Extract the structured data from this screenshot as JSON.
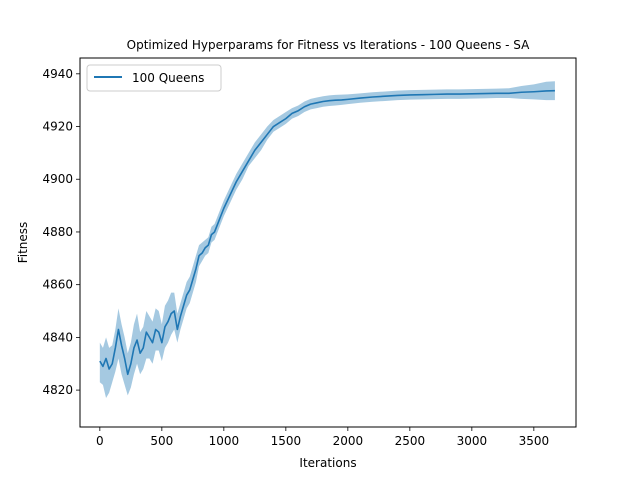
{
  "chart_data": {
    "type": "line",
    "title": "Optimized Hyperparams for Fitness vs Iterations - 100 Queens - SA",
    "xlabel": "Iterations",
    "ylabel": "Fitness",
    "xlim": [
      -160,
      3840
    ],
    "ylim": [
      4806,
      4946
    ],
    "xticks": [
      0,
      500,
      1000,
      1500,
      2000,
      2500,
      3000,
      3500
    ],
    "yticks": [
      4820,
      4840,
      4860,
      4880,
      4900,
      4920,
      4940
    ],
    "grid": false,
    "legend_position": "upper-left",
    "legend": [
      "100 Queens"
    ],
    "series": [
      {
        "name": "100 Queens",
        "color": "#1f77b4",
        "band_color": "#1f77b4",
        "x": [
          0,
          25,
          50,
          75,
          100,
          125,
          150,
          175,
          200,
          225,
          250,
          275,
          300,
          325,
          350,
          375,
          400,
          425,
          450,
          475,
          500,
          525,
          550,
          575,
          600,
          625,
          650,
          675,
          700,
          725,
          750,
          775,
          800,
          825,
          850,
          875,
          900,
          925,
          950,
          975,
          1000,
          1050,
          1100,
          1150,
          1200,
          1250,
          1300,
          1350,
          1400,
          1450,
          1500,
          1550,
          1600,
          1650,
          1700,
          1750,
          1800,
          1850,
          1900,
          1950,
          2000,
          2100,
          2200,
          2300,
          2400,
          2500,
          2600,
          2700,
          2800,
          2900,
          3000,
          3100,
          3200,
          3300,
          3400,
          3500,
          3600,
          3670
        ],
        "values": [
          4831,
          4829,
          4832,
          4828,
          4830,
          4836,
          4843,
          4837,
          4832,
          4826,
          4830,
          4836,
          4839,
          4834,
          4836,
          4842,
          4840,
          4838,
          4843,
          4842,
          4838,
          4844,
          4846,
          4849,
          4850,
          4843,
          4848,
          4852,
          4856,
          4858,
          4862,
          4866,
          4871,
          4872,
          4874,
          4875,
          4879,
          4880,
          4883,
          4886,
          4889,
          4894,
          4899,
          4903,
          4907,
          4911,
          4914,
          4917,
          4920,
          4921.5,
          4923,
          4925,
          4926,
          4927.5,
          4928.5,
          4929,
          4929.5,
          4929.8,
          4930,
          4930.1,
          4930.3,
          4930.8,
          4931.2,
          4931.5,
          4931.8,
          4932,
          4932.1,
          4932.2,
          4932.3,
          4932.3,
          4932.4,
          4932.5,
          4932.6,
          4932.6,
          4933,
          4933.2,
          4933.5,
          4933.6
        ],
        "lower": [
          4823,
          4822,
          4817,
          4819,
          4823,
          4827,
          4832,
          4826,
          4822,
          4818,
          4821,
          4826,
          4830,
          4826,
          4828,
          4832,
          4832,
          4830,
          4835,
          4835,
          4831,
          4836,
          4838,
          4841,
          4843,
          4838,
          4843,
          4847,
          4851,
          4853,
          4857,
          4861,
          4867,
          4869,
          4871,
          4872,
          4876,
          4877,
          4880,
          4883,
          4886,
          4891,
          4896,
          4900,
          4905,
          4908,
          4911,
          4915,
          4918,
          4919.5,
          4921,
          4923,
          4924,
          4925.5,
          4926.5,
          4927,
          4927.5,
          4927.8,
          4928,
          4928.2,
          4928.5,
          4929,
          4929.4,
          4929.7,
          4930,
          4930.2,
          4930.3,
          4930.4,
          4930.5,
          4930.5,
          4930.6,
          4930.7,
          4930.8,
          4930.8,
          4930.5,
          4930.3,
          4930,
          4930
        ],
        "upper": [
          4838,
          4836,
          4840,
          4836,
          4837,
          4843,
          4851,
          4845,
          4840,
          4834,
          4838,
          4845,
          4849,
          4842,
          4844,
          4850,
          4848,
          4846,
          4851,
          4850,
          4845,
          4852,
          4854,
          4857,
          4857,
          4849,
          4853,
          4857,
          4861,
          4863,
          4867,
          4871,
          4875,
          4876,
          4877,
          4878,
          4882,
          4883,
          4886,
          4889,
          4892,
          4897,
          4902,
          4906,
          4910,
          4914,
          4917,
          4920,
          4922.5,
          4924,
          4925.5,
          4927,
          4928,
          4929.5,
          4930.5,
          4931,
          4931.5,
          4931.8,
          4932,
          4932.1,
          4932.2,
          4932.6,
          4933,
          4933.3,
          4933.6,
          4933.8,
          4933.9,
          4934,
          4934.1,
          4934.1,
          4934.2,
          4934.3,
          4934.4,
          4934.5,
          4935.4,
          4936,
          4937,
          4937.2
        ]
      }
    ]
  }
}
